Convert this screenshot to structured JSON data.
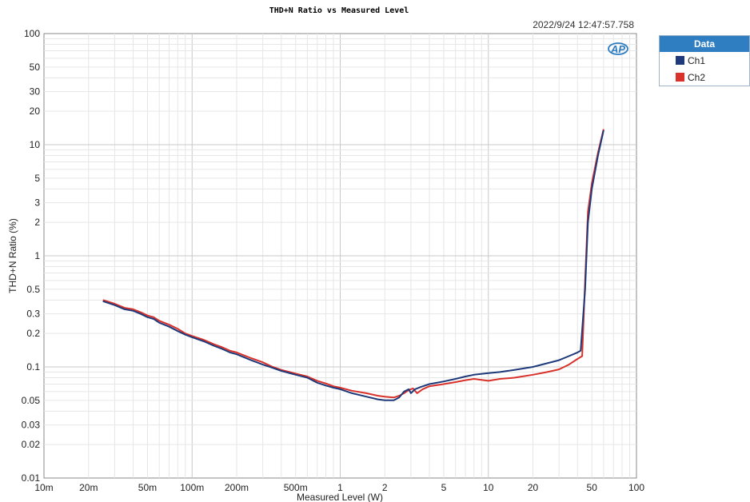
{
  "chart_data": {
    "type": "line",
    "title": "THD+N Ratio vs Measured Level",
    "timestamp": "2022/9/24 12:47:57.758",
    "xlabel": "Measured Level (W)",
    "ylabel": "THD+N Ratio (%)",
    "x_scale": "log",
    "y_scale": "log",
    "xlim": [
      0.01,
      100
    ],
    "ylim": [
      0.01,
      100
    ],
    "grid": true,
    "legend_title": "Data",
    "legend_placement": "right",
    "x_ticks": [
      {
        "v": 0.01,
        "label": "10m"
      },
      {
        "v": 0.02,
        "label": "20m"
      },
      {
        "v": 0.05,
        "label": "50m"
      },
      {
        "v": 0.1,
        "label": "100m"
      },
      {
        "v": 0.2,
        "label": "200m"
      },
      {
        "v": 0.5,
        "label": "500m"
      },
      {
        "v": 1,
        "label": "1"
      },
      {
        "v": 2,
        "label": "2"
      },
      {
        "v": 5,
        "label": "5"
      },
      {
        "v": 10,
        "label": "10"
      },
      {
        "v": 20,
        "label": "20"
      },
      {
        "v": 50,
        "label": "50"
      },
      {
        "v": 100,
        "label": "100"
      }
    ],
    "y_ticks": [
      {
        "v": 100,
        "label": "100"
      },
      {
        "v": 50,
        "label": "50"
      },
      {
        "v": 30,
        "label": "30"
      },
      {
        "v": 20,
        "label": "20"
      },
      {
        "v": 10,
        "label": "10"
      },
      {
        "v": 5,
        "label": "5"
      },
      {
        "v": 3,
        "label": "3"
      },
      {
        "v": 2,
        "label": "2"
      },
      {
        "v": 1,
        "label": "1"
      },
      {
        "v": 0.5,
        "label": "0.5"
      },
      {
        "v": 0.3,
        "label": "0.3"
      },
      {
        "v": 0.2,
        "label": "0.2"
      },
      {
        "v": 0.1,
        "label": "0.1"
      },
      {
        "v": 0.05,
        "label": "0.05"
      },
      {
        "v": 0.03,
        "label": "0.03"
      },
      {
        "v": 0.02,
        "label": "0.02"
      },
      {
        "v": 0.01,
        "label": "0.01"
      }
    ],
    "series": [
      {
        "name": "Ch1",
        "color": "#1f3a7a",
        "points": [
          [
            0.025,
            0.39
          ],
          [
            0.03,
            0.36
          ],
          [
            0.035,
            0.33
          ],
          [
            0.04,
            0.32
          ],
          [
            0.045,
            0.3
          ],
          [
            0.05,
            0.28
          ],
          [
            0.055,
            0.27
          ],
          [
            0.06,
            0.25
          ],
          [
            0.07,
            0.23
          ],
          [
            0.08,
            0.21
          ],
          [
            0.09,
            0.195
          ],
          [
            0.1,
            0.185
          ],
          [
            0.12,
            0.17
          ],
          [
            0.14,
            0.155
          ],
          [
            0.16,
            0.145
          ],
          [
            0.18,
            0.135
          ],
          [
            0.2,
            0.13
          ],
          [
            0.25,
            0.115
          ],
          [
            0.3,
            0.105
          ],
          [
            0.35,
            0.098
          ],
          [
            0.4,
            0.092
          ],
          [
            0.5,
            0.085
          ],
          [
            0.6,
            0.08
          ],
          [
            0.7,
            0.072
          ],
          [
            0.8,
            0.068
          ],
          [
            0.9,
            0.065
          ],
          [
            1.0,
            0.063
          ],
          [
            1.2,
            0.058
          ],
          [
            1.5,
            0.054
          ],
          [
            1.8,
            0.051
          ],
          [
            2.0,
            0.05
          ],
          [
            2.3,
            0.05
          ],
          [
            2.5,
            0.053
          ],
          [
            2.7,
            0.06
          ],
          [
            2.9,
            0.063
          ],
          [
            3.0,
            0.058
          ],
          [
            3.2,
            0.063
          ],
          [
            3.5,
            0.066
          ],
          [
            4.0,
            0.07
          ],
          [
            5.0,
            0.074
          ],
          [
            6.0,
            0.078
          ],
          [
            7.0,
            0.082
          ],
          [
            8.0,
            0.085
          ],
          [
            10,
            0.088
          ],
          [
            12,
            0.09
          ],
          [
            15,
            0.094
          ],
          [
            20,
            0.1
          ],
          [
            25,
            0.108
          ],
          [
            30,
            0.115
          ],
          [
            35,
            0.125
          ],
          [
            40,
            0.135
          ],
          [
            42,
            0.14
          ],
          [
            45,
            0.5
          ],
          [
            47,
            2.0
          ],
          [
            50,
            4.0
          ],
          [
            55,
            8.0
          ],
          [
            60,
            13.5
          ]
        ]
      },
      {
        "name": "Ch2",
        "color": "#d8322b",
        "points": [
          [
            0.025,
            0.4
          ],
          [
            0.03,
            0.37
          ],
          [
            0.035,
            0.34
          ],
          [
            0.04,
            0.33
          ],
          [
            0.045,
            0.31
          ],
          [
            0.05,
            0.29
          ],
          [
            0.055,
            0.28
          ],
          [
            0.06,
            0.26
          ],
          [
            0.07,
            0.24
          ],
          [
            0.08,
            0.22
          ],
          [
            0.09,
            0.2
          ],
          [
            0.1,
            0.19
          ],
          [
            0.12,
            0.175
          ],
          [
            0.14,
            0.16
          ],
          [
            0.16,
            0.15
          ],
          [
            0.18,
            0.14
          ],
          [
            0.2,
            0.135
          ],
          [
            0.25,
            0.12
          ],
          [
            0.3,
            0.11
          ],
          [
            0.35,
            0.1
          ],
          [
            0.4,
            0.094
          ],
          [
            0.5,
            0.087
          ],
          [
            0.6,
            0.082
          ],
          [
            0.7,
            0.075
          ],
          [
            0.8,
            0.071
          ],
          [
            0.9,
            0.067
          ],
          [
            1.0,
            0.065
          ],
          [
            1.2,
            0.061
          ],
          [
            1.5,
            0.058
          ],
          [
            1.8,
            0.055
          ],
          [
            2.0,
            0.054
          ],
          [
            2.3,
            0.053
          ],
          [
            2.5,
            0.055
          ],
          [
            2.7,
            0.058
          ],
          [
            2.9,
            0.062
          ],
          [
            3.1,
            0.064
          ],
          [
            3.3,
            0.058
          ],
          [
            3.6,
            0.063
          ],
          [
            4.0,
            0.067
          ],
          [
            5.0,
            0.07
          ],
          [
            6.0,
            0.073
          ],
          [
            7.0,
            0.076
          ],
          [
            8.0,
            0.078
          ],
          [
            10,
            0.075
          ],
          [
            12,
            0.078
          ],
          [
            15,
            0.08
          ],
          [
            20,
            0.085
          ],
          [
            25,
            0.09
          ],
          [
            30,
            0.095
          ],
          [
            35,
            0.105
          ],
          [
            40,
            0.118
          ],
          [
            43,
            0.125
          ],
          [
            45,
            0.6
          ],
          [
            47,
            2.5
          ],
          [
            50,
            4.5
          ],
          [
            55,
            8.5
          ],
          [
            60,
            13.8
          ]
        ]
      }
    ]
  }
}
